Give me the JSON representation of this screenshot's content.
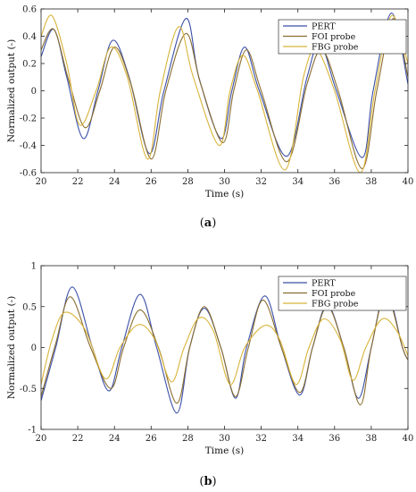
{
  "captions": {
    "a": {
      "open": "(",
      "letter": "a",
      "close": ")"
    },
    "b": {
      "open": "(",
      "letter": "b",
      "close": ")"
    }
  },
  "chart_data": [
    {
      "type": "line",
      "xlabel": "Time (s)",
      "ylabel": "Normalized output (-)",
      "xlim": [
        20,
        40
      ],
      "ylim": [
        -0.6,
        0.6
      ],
      "xticks": [
        20,
        22,
        24,
        26,
        28,
        30,
        32,
        34,
        36,
        38,
        40
      ],
      "yticks": [
        -0.6,
        -0.4,
        -0.2,
        0,
        0.2,
        0.4,
        0.6
      ],
      "ytick_labels": [
        "-0.6",
        "-0.4",
        "-0.2",
        "0",
        "0.2",
        "0.4",
        "0.6"
      ],
      "grid": false,
      "legend": "top-right",
      "series": [
        {
          "name": "PERT",
          "color": "#3a4fa8",
          "points": [
            [
              20,
              0.25
            ],
            [
              20.7,
              0.45
            ],
            [
              21.4,
              0.1
            ],
            [
              22.3,
              -0.35
            ],
            [
              23.1,
              0.0
            ],
            [
              23.9,
              0.37
            ],
            [
              24.8,
              0.1
            ],
            [
              25.9,
              -0.46
            ],
            [
              26.7,
              0.0
            ],
            [
              27.9,
              0.53
            ],
            [
              28.6,
              0.1
            ],
            [
              29.8,
              -0.35
            ],
            [
              30.4,
              0.0
            ],
            [
              31.1,
              0.32
            ],
            [
              31.9,
              0.0
            ],
            [
              33.4,
              -0.48
            ],
            [
              34.5,
              0.1
            ],
            [
              35.2,
              0.35
            ],
            [
              36.1,
              0.0
            ],
            [
              37.5,
              -0.49
            ],
            [
              38.1,
              0.0
            ],
            [
              39.1,
              0.57
            ],
            [
              40,
              0.05
            ]
          ]
        },
        {
          "name": "FOI probe",
          "color": "#8a6d2f",
          "points": [
            [
              20,
              0.3
            ],
            [
              20.7,
              0.45
            ],
            [
              21.5,
              0.08
            ],
            [
              22.4,
              -0.27
            ],
            [
              23.2,
              0.0
            ],
            [
              24.0,
              0.32
            ],
            [
              24.9,
              0.05
            ],
            [
              26.0,
              -0.5
            ],
            [
              26.8,
              0.0
            ],
            [
              27.9,
              0.42
            ],
            [
              28.7,
              0.05
            ],
            [
              29.9,
              -0.38
            ],
            [
              30.5,
              0.0
            ],
            [
              31.2,
              0.3
            ],
            [
              32.0,
              0.0
            ],
            [
              33.4,
              -0.52
            ],
            [
              34.5,
              0.05
            ],
            [
              35.3,
              0.3
            ],
            [
              36.2,
              0.0
            ],
            [
              37.5,
              -0.57
            ],
            [
              38.3,
              0.0
            ],
            [
              39.2,
              0.53
            ],
            [
              40,
              0.1
            ]
          ]
        },
        {
          "name": "FBG probe",
          "color": "#d8b43a",
          "points": [
            [
              20,
              0.4
            ],
            [
              20.6,
              0.55
            ],
            [
              21.4,
              0.2
            ],
            [
              22.1,
              -0.25
            ],
            [
              23.0,
              0.0
            ],
            [
              23.8,
              0.32
            ],
            [
              24.7,
              0.1
            ],
            [
              25.8,
              -0.5
            ],
            [
              26.5,
              0.0
            ],
            [
              27.5,
              0.47
            ],
            [
              28.3,
              0.1
            ],
            [
              29.7,
              -0.4
            ],
            [
              30.3,
              0.0
            ],
            [
              31.0,
              0.26
            ],
            [
              31.8,
              0.0
            ],
            [
              33.3,
              -0.58
            ],
            [
              34.3,
              0.1
            ],
            [
              35.0,
              0.3
            ],
            [
              36.0,
              0.0
            ],
            [
              37.4,
              -0.6
            ],
            [
              38.2,
              0.0
            ],
            [
              39.1,
              0.55
            ],
            [
              40,
              0.2
            ]
          ]
        }
      ]
    },
    {
      "type": "line",
      "xlabel": "Time (s)",
      "ylabel": "Normalized output (-)",
      "xlim": [
        20,
        40
      ],
      "ylim": [
        -1,
        1
      ],
      "xticks": [
        20,
        22,
        24,
        26,
        28,
        30,
        32,
        34,
        36,
        38,
        40
      ],
      "yticks": [
        -1,
        -0.5,
        0,
        0.5,
        1
      ],
      "ytick_labels": [
        "-1",
        "-0.5",
        "0",
        "0.5",
        "1"
      ],
      "grid": false,
      "legend": "top-right",
      "series": [
        {
          "name": "PERT",
          "color": "#3a4fa8",
          "points": [
            [
              20,
              -0.65
            ],
            [
              20.8,
              0.0
            ],
            [
              21.7,
              0.74
            ],
            [
              22.8,
              0.0
            ],
            [
              23.7,
              -0.53
            ],
            [
              24.4,
              0.0
            ],
            [
              25.4,
              0.65
            ],
            [
              26.3,
              0.0
            ],
            [
              27.4,
              -0.8
            ],
            [
              28.1,
              0.0
            ],
            [
              28.9,
              0.48
            ],
            [
              29.8,
              0.0
            ],
            [
              30.6,
              -0.62
            ],
            [
              31.2,
              0.0
            ],
            [
              32.2,
              0.63
            ],
            [
              33.1,
              0.0
            ],
            [
              34.1,
              -0.58
            ],
            [
              34.8,
              0.0
            ],
            [
              35.6,
              0.52
            ],
            [
              36.5,
              0.0
            ],
            [
              37.3,
              -0.62
            ],
            [
              38.0,
              0.0
            ],
            [
              38.8,
              0.7
            ],
            [
              39.7,
              0.0
            ],
            [
              40,
              -0.15
            ]
          ]
        },
        {
          "name": "FOI probe",
          "color": "#8a6d2f",
          "points": [
            [
              20,
              -0.6
            ],
            [
              20.8,
              0.05
            ],
            [
              21.6,
              0.62
            ],
            [
              22.7,
              0.0
            ],
            [
              23.8,
              -0.5
            ],
            [
              24.5,
              0.0
            ],
            [
              25.4,
              0.46
            ],
            [
              26.4,
              0.0
            ],
            [
              27.4,
              -0.68
            ],
            [
              28.1,
              0.0
            ],
            [
              28.9,
              0.5
            ],
            [
              29.8,
              0.0
            ],
            [
              30.6,
              -0.6
            ],
            [
              31.3,
              0.0
            ],
            [
              32.1,
              0.58
            ],
            [
              33.1,
              0.0
            ],
            [
              34.1,
              -0.55
            ],
            [
              34.8,
              0.0
            ],
            [
              35.6,
              0.5
            ],
            [
              36.5,
              0.0
            ],
            [
              37.4,
              -0.7
            ],
            [
              38.0,
              0.0
            ],
            [
              38.8,
              0.65
            ],
            [
              39.7,
              0.0
            ],
            [
              40,
              -0.15
            ]
          ]
        },
        {
          "name": "FBG probe",
          "color": "#d8b43a",
          "points": [
            [
              20,
              -0.45
            ],
            [
              20.6,
              0.1
            ],
            [
              21.3,
              0.43
            ],
            [
              22.4,
              0.22
            ],
            [
              23.5,
              -0.38
            ],
            [
              24.3,
              0.0
            ],
            [
              25.3,
              0.28
            ],
            [
              26.2,
              0.1
            ],
            [
              27.1,
              -0.42
            ],
            [
              27.8,
              0.0
            ],
            [
              28.6,
              0.36
            ],
            [
              29.4,
              0.2
            ],
            [
              30.3,
              -0.45
            ],
            [
              31.1,
              0.0
            ],
            [
              32.2,
              0.27
            ],
            [
              33.0,
              0.1
            ],
            [
              33.9,
              -0.45
            ],
            [
              34.6,
              0.0
            ],
            [
              35.4,
              0.35
            ],
            [
              36.3,
              0.1
            ],
            [
              37.0,
              -0.4
            ],
            [
              37.7,
              0.0
            ],
            [
              38.6,
              0.35
            ],
            [
              39.4,
              0.2
            ],
            [
              40,
              -0.1
            ]
          ]
        }
      ]
    }
  ]
}
